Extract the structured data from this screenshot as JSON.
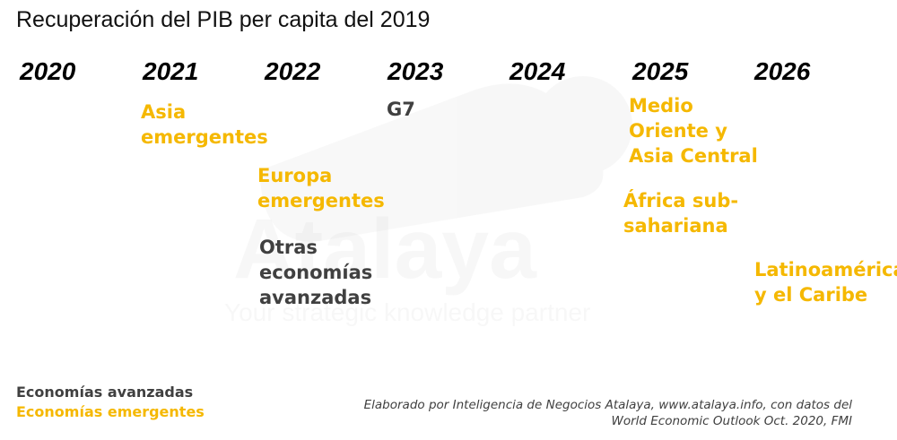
{
  "title": "Recuperación del PIB per capita del 2019",
  "colors": {
    "emerging": "#F5B800",
    "advanced": "#404040",
    "year": "#000000"
  },
  "watermark": {
    "brand": "Atalaya",
    "tagline": "Your strategic knowledge partner"
  },
  "chart_data": {
    "type": "table",
    "title": "Recuperación del PIB per capita del 2019",
    "years": [
      "2020",
      "2021",
      "2022",
      "2023",
      "2024",
      "2025",
      "2026"
    ],
    "groups": [
      {
        "lines": [
          "Asia",
          "emergentes"
        ],
        "year": "2021",
        "category": "emerging"
      },
      {
        "lines": [
          "Europa",
          "emergentes"
        ],
        "year": "2022",
        "category": "emerging"
      },
      {
        "lines": [
          "Otras",
          "economías",
          "avanzadas"
        ],
        "year": "2022",
        "category": "advanced"
      },
      {
        "lines": [
          "G7"
        ],
        "year": "2023",
        "category": "advanced"
      },
      {
        "lines": [
          "Medio",
          "Oriente y",
          "Asia Central"
        ],
        "year": "2025",
        "category": "emerging"
      },
      {
        "lines": [
          "África sub-",
          "sahariana"
        ],
        "year": "2025",
        "category": "emerging"
      },
      {
        "lines": [
          "Latinoamérica",
          "y el Caribe"
        ],
        "year": "2026",
        "category": "emerging"
      }
    ],
    "legend": [
      {
        "label": "Economías avanzadas",
        "category": "advanced"
      },
      {
        "label": "Economías emergentes",
        "category": "emerging"
      }
    ],
    "source": [
      "Elaborado por Inteligencia de Negocios Atalaya, www.atalaya.info,  con datos del",
      "World Economic Outlook Oct.  2020, FMI"
    ]
  }
}
